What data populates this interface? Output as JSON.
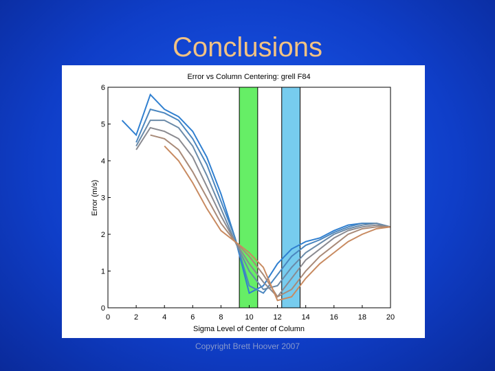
{
  "slide": {
    "title": "Conclusions",
    "footer": "Copyright Brett Hoover 2007"
  },
  "chart_data": {
    "type": "line",
    "title": "Error vs Column Centering: grell F84",
    "x_label": "Sigma Level of Center of Column",
    "y_label": "Error (m/s)",
    "x": [
      1,
      2,
      3,
      4,
      5,
      6,
      7,
      8,
      9,
      10,
      11,
      12,
      13,
      14,
      15,
      16,
      17,
      18,
      19,
      20
    ],
    "series": [
      {
        "color": "#2f7fd0",
        "values": [
          5.1,
          4.7,
          5.8,
          5.4,
          5.2,
          4.8,
          4.1,
          3.1,
          1.9,
          0.4,
          0.6,
          1.2,
          1.6,
          1.8,
          1.9,
          2.1,
          2.25,
          2.3,
          2.3,
          2.2
        ]
      },
      {
        "color": "#4a86bf",
        "values": [
          null,
          4.5,
          5.4,
          5.3,
          5.1,
          4.6,
          3.9,
          2.9,
          1.9,
          0.6,
          0.4,
          0.9,
          1.4,
          1.7,
          1.85,
          2.05,
          2.2,
          2.3,
          2.3,
          2.2
        ]
      },
      {
        "color": "#6a8aa8",
        "values": [
          null,
          4.4,
          5.1,
          5.1,
          4.9,
          4.4,
          3.6,
          2.7,
          1.8,
          1.0,
          0.5,
          0.6,
          1.1,
          1.5,
          1.75,
          2.0,
          2.15,
          2.25,
          2.3,
          2.2
        ]
      },
      {
        "color": "#8a8a90",
        "values": [
          null,
          4.3,
          4.9,
          4.8,
          4.6,
          4.1,
          3.3,
          2.5,
          1.8,
          1.2,
          0.7,
          0.3,
          0.8,
          1.3,
          1.6,
          1.9,
          2.1,
          2.2,
          2.25,
          2.2
        ]
      },
      {
        "color": "#a88a78",
        "values": [
          null,
          null,
          4.7,
          4.6,
          4.3,
          3.7,
          3.0,
          2.3,
          1.8,
          1.4,
          0.9,
          0.3,
          0.5,
          1.0,
          1.4,
          1.7,
          2.0,
          2.15,
          2.2,
          2.2
        ]
      },
      {
        "color": "#c88a60",
        "values": [
          null,
          null,
          null,
          4.4,
          4.0,
          3.4,
          2.7,
          2.1,
          1.8,
          1.5,
          1.1,
          0.2,
          0.3,
          0.8,
          1.2,
          1.5,
          1.8,
          2.0,
          2.15,
          2.2
        ]
      }
    ],
    "bands": [
      {
        "xlim": [
          9.3,
          10.6
        ],
        "color": "#66ee66"
      },
      {
        "xlim": [
          12.3,
          13.6
        ],
        "color": "#77ccee"
      }
    ],
    "xlim": [
      0,
      20
    ],
    "ylim": [
      0,
      6
    ],
    "xticks": [
      0,
      2,
      4,
      6,
      8,
      10,
      12,
      14,
      16,
      18,
      20
    ],
    "yticks": [
      0,
      1,
      2,
      3,
      4,
      5,
      6
    ]
  }
}
